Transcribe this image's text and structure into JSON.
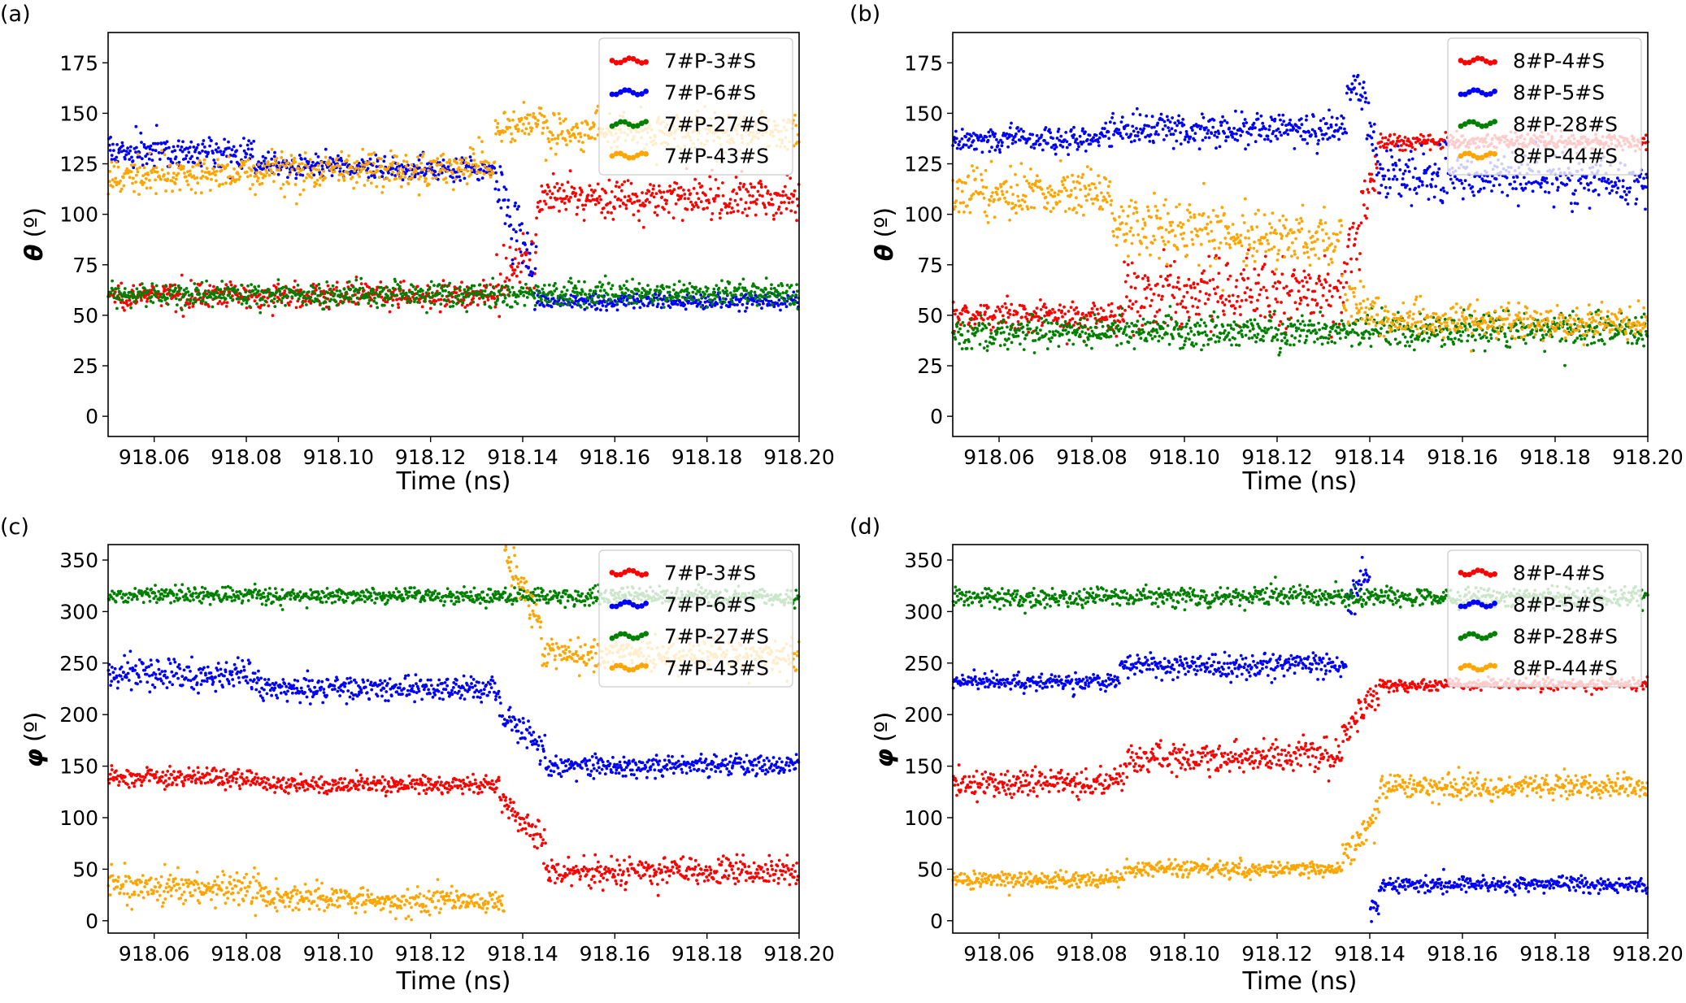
{
  "chart_data": [
    {
      "type": "scatter",
      "panel_label": "(a)",
      "xlabel": "Time (ns)",
      "ylabel_symbol": "θ",
      "ylabel_unit": "(º)",
      "xlim": [
        918.05,
        918.2
      ],
      "ylim": [
        -10,
        190
      ],
      "xticks": [
        918.06,
        918.08,
        918.1,
        918.12,
        918.14,
        918.16,
        918.18,
        918.2
      ],
      "xtick_labels": [
        "918.06",
        "918.08",
        "918.10",
        "918.12",
        "918.14",
        "918.16",
        "918.18",
        "918.20"
      ],
      "yticks": [
        0,
        25,
        50,
        75,
        100,
        125,
        150,
        175
      ],
      "ytick_labels": [
        "0",
        "25",
        "50",
        "75",
        "100",
        "125",
        "150",
        "175"
      ],
      "legend_position": "top-right",
      "series": [
        {
          "name": "7#P-3#S",
          "color": "#ff0000",
          "segments": [
            {
              "t0": 918.05,
              "t1": 918.134,
              "v0": 60,
              "v1": 60,
              "noise": 3
            },
            {
              "t0": 918.134,
              "t1": 918.143,
              "v0": 60,
              "v1": 80,
              "noise": 8
            },
            {
              "t0": 918.143,
              "t1": 918.2,
              "v0": 108,
              "v1": 108,
              "noise": 5
            }
          ]
        },
        {
          "name": "7#P-6#S",
          "color": "#0000ff",
          "segments": [
            {
              "t0": 918.05,
              "t1": 918.082,
              "v0": 132,
              "v1": 130,
              "noise": 4
            },
            {
              "t0": 918.082,
              "t1": 918.134,
              "v0": 124,
              "v1": 122,
              "noise": 3
            },
            {
              "t0": 918.134,
              "t1": 918.143,
              "v0": 118,
              "v1": 70,
              "noise": 8
            },
            {
              "t0": 918.143,
              "t1": 918.2,
              "v0": 57,
              "v1": 57,
              "noise": 2
            }
          ]
        },
        {
          "name": "7#P-27#S",
          "color": "#008000",
          "segments": [
            {
              "t0": 918.05,
              "t1": 918.2,
              "v0": 60,
              "v1": 61,
              "noise": 3
            }
          ]
        },
        {
          "name": "7#P-43#S",
          "color": "#ffa500",
          "segments": [
            {
              "t0": 918.05,
              "t1": 918.134,
              "v0": 118,
              "v1": 124,
              "noise": 5
            },
            {
              "t0": 918.134,
              "t1": 918.145,
              "v0": 140,
              "v1": 148,
              "noise": 4
            },
            {
              "t0": 918.145,
              "t1": 918.2,
              "v0": 141,
              "v1": 141,
              "noise": 5
            }
          ]
        }
      ]
    },
    {
      "type": "scatter",
      "panel_label": "(b)",
      "xlabel": "Time (ns)",
      "ylabel_symbol": "θ",
      "ylabel_unit": "(º)",
      "xlim": [
        918.05,
        918.2
      ],
      "ylim": [
        -10,
        190
      ],
      "xticks": [
        918.06,
        918.08,
        918.1,
        918.12,
        918.14,
        918.16,
        918.18,
        918.2
      ],
      "xtick_labels": [
        "918.06",
        "918.08",
        "918.10",
        "918.12",
        "918.14",
        "918.16",
        "918.18",
        "918.20"
      ],
      "yticks": [
        0,
        25,
        50,
        75,
        100,
        125,
        150,
        175
      ],
      "ytick_labels": [
        "0",
        "25",
        "50",
        "75",
        "100",
        "125",
        "150",
        "175"
      ],
      "legend_position": "top-right",
      "series": [
        {
          "name": "8#P-4#S",
          "color": "#ff0000",
          "segments": [
            {
              "t0": 918.05,
              "t1": 918.087,
              "v0": 50,
              "v1": 50,
              "noise": 4
            },
            {
              "t0": 918.087,
              "t1": 918.135,
              "v0": 60,
              "v1": 62,
              "noise": 9
            },
            {
              "t0": 918.135,
              "t1": 918.142,
              "v0": 75,
              "v1": 130,
              "noise": 8
            },
            {
              "t0": 918.142,
              "t1": 918.2,
              "v0": 136,
              "v1": 136,
              "noise": 2
            }
          ]
        },
        {
          "name": "8#P-5#S",
          "color": "#0000ff",
          "segments": [
            {
              "t0": 918.05,
              "t1": 918.082,
              "v0": 137,
              "v1": 137,
              "noise": 3
            },
            {
              "t0": 918.082,
              "t1": 918.135,
              "v0": 142,
              "v1": 142,
              "noise": 4
            },
            {
              "t0": 918.135,
              "t1": 918.139,
              "v0": 162,
              "v1": 160,
              "noise": 5
            },
            {
              "t0": 918.139,
              "t1": 918.142,
              "v0": 150,
              "v1": 125,
              "noise": 6
            },
            {
              "t0": 918.142,
              "t1": 918.2,
              "v0": 120,
              "v1": 116,
              "noise": 6
            }
          ]
        },
        {
          "name": "8#P-28#S",
          "color": "#008000",
          "segments": [
            {
              "t0": 918.05,
              "t1": 918.2,
              "v0": 42,
              "v1": 43,
              "noise": 4
            }
          ]
        },
        {
          "name": "8#P-44#S",
          "color": "#ffa500",
          "segments": [
            {
              "t0": 918.05,
              "t1": 918.084,
              "v0": 112,
              "v1": 110,
              "noise": 6
            },
            {
              "t0": 918.084,
              "t1": 918.134,
              "v0": 92,
              "v1": 88,
              "noise": 7
            },
            {
              "t0": 918.134,
              "t1": 918.142,
              "v0": 60,
              "v1": 48,
              "noise": 6
            },
            {
              "t0": 918.142,
              "t1": 918.2,
              "v0": 47,
              "v1": 47,
              "noise": 4
            }
          ]
        }
      ]
    },
    {
      "type": "scatter",
      "panel_label": "(c)",
      "xlabel": "Time (ns)",
      "ylabel_symbol": "φ",
      "ylabel_unit": "(º)",
      "xlim": [
        918.05,
        918.2
      ],
      "ylim": [
        -12,
        365
      ],
      "xticks": [
        918.06,
        918.08,
        918.1,
        918.12,
        918.14,
        918.16,
        918.18,
        918.2
      ],
      "xtick_labels": [
        "918.06",
        "918.08",
        "918.10",
        "918.12",
        "918.14",
        "918.16",
        "918.18",
        "918.20"
      ],
      "yticks": [
        0,
        50,
        100,
        150,
        200,
        250,
        300,
        350
      ],
      "ytick_labels": [
        "0",
        "50",
        "100",
        "150",
        "200",
        "250",
        "300",
        "350"
      ],
      "legend_position": "top-right",
      "series": [
        {
          "name": "7#P-3#S",
          "color": "#ff0000",
          "segments": [
            {
              "t0": 918.05,
              "t1": 918.083,
              "v0": 140,
              "v1": 138,
              "noise": 5
            },
            {
              "t0": 918.083,
              "t1": 918.135,
              "v0": 132,
              "v1": 132,
              "noise": 4
            },
            {
              "t0": 918.135,
              "t1": 918.145,
              "v0": 120,
              "v1": 70,
              "noise": 8
            },
            {
              "t0": 918.145,
              "t1": 918.2,
              "v0": 48,
              "v1": 48,
              "noise": 7
            }
          ]
        },
        {
          "name": "7#P-6#S",
          "color": "#0000ff",
          "segments": [
            {
              "t0": 918.05,
              "t1": 918.083,
              "v0": 240,
              "v1": 235,
              "noise": 8
            },
            {
              "t0": 918.083,
              "t1": 918.135,
              "v0": 226,
              "v1": 224,
              "noise": 6
            },
            {
              "t0": 918.135,
              "t1": 918.145,
              "v0": 205,
              "v1": 165,
              "noise": 8
            },
            {
              "t0": 918.145,
              "t1": 918.2,
              "v0": 150,
              "v1": 150,
              "noise": 5
            }
          ]
        },
        {
          "name": "7#P-27#S",
          "color": "#008000",
          "segments": [
            {
              "t0": 918.05,
              "t1": 918.2,
              "v0": 316,
              "v1": 314,
              "noise": 4
            }
          ]
        },
        {
          "name": "7#P-43#S",
          "color": "#ffa500",
          "segments": [
            {
              "t0": 918.05,
              "t1": 918.083,
              "v0": 35,
              "v1": 30,
              "noise": 8
            },
            {
              "t0": 918.083,
              "t1": 918.136,
              "v0": 22,
              "v1": 18,
              "noise": 6
            },
            {
              "t0": 918.136,
              "t1": 918.144,
              "v0": 355,
              "v1": 290,
              "noise": 10
            },
            {
              "t0": 918.144,
              "t1": 918.2,
              "v0": 258,
              "v1": 258,
              "noise": 8
            }
          ]
        }
      ]
    },
    {
      "type": "scatter",
      "panel_label": "(d)",
      "xlabel": "Time (ns)",
      "ylabel_symbol": "φ",
      "ylabel_unit": "(º)",
      "xlim": [
        918.05,
        918.2
      ],
      "ylim": [
        -12,
        365
      ],
      "xticks": [
        918.06,
        918.08,
        918.1,
        918.12,
        918.14,
        918.16,
        918.18,
        918.2
      ],
      "xtick_labels": [
        "918.06",
        "918.08",
        "918.10",
        "918.12",
        "918.14",
        "918.16",
        "918.18",
        "918.20"
      ],
      "yticks": [
        0,
        50,
        100,
        150,
        200,
        250,
        300,
        350
      ],
      "ytick_labels": [
        "0",
        "50",
        "100",
        "150",
        "200",
        "250",
        "300",
        "350"
      ],
      "legend_position": "top-right",
      "series": [
        {
          "name": "8#P-4#S",
          "color": "#ff0000",
          "segments": [
            {
              "t0": 918.05,
              "t1": 918.087,
              "v0": 133,
              "v1": 135,
              "noise": 7
            },
            {
              "t0": 918.087,
              "t1": 918.134,
              "v0": 158,
              "v1": 160,
              "noise": 8
            },
            {
              "t0": 918.134,
              "t1": 918.142,
              "v0": 180,
              "v1": 220,
              "noise": 8
            },
            {
              "t0": 918.142,
              "t1": 918.2,
              "v0": 229,
              "v1": 229,
              "noise": 3
            }
          ]
        },
        {
          "name": "8#P-5#S",
          "color": "#0000ff",
          "segments": [
            {
              "t0": 918.05,
              "t1": 918.086,
              "v0": 232,
              "v1": 232,
              "noise": 4
            },
            {
              "t0": 918.086,
              "t1": 918.135,
              "v0": 248,
              "v1": 248,
              "noise": 6
            },
            {
              "t0": 918.135,
              "t1": 918.14,
              "v0": 300,
              "v1": 350,
              "noise": 10
            },
            {
              "t0": 918.14,
              "t1": 918.142,
              "v0": 10,
              "v1": 15,
              "noise": 5
            },
            {
              "t0": 918.142,
              "t1": 918.2,
              "v0": 35,
              "v1": 35,
              "noise": 4
            }
          ]
        },
        {
          "name": "8#P-28#S",
          "color": "#008000",
          "segments": [
            {
              "t0": 918.05,
              "t1": 918.2,
              "v0": 314,
              "v1": 314,
              "noise": 5
            }
          ]
        },
        {
          "name": "8#P-44#S",
          "color": "#ffa500",
          "segments": [
            {
              "t0": 918.05,
              "t1": 918.087,
              "v0": 40,
              "v1": 40,
              "noise": 4
            },
            {
              "t0": 918.087,
              "t1": 918.134,
              "v0": 50,
              "v1": 50,
              "noise": 4
            },
            {
              "t0": 918.134,
              "t1": 918.142,
              "v0": 60,
              "v1": 105,
              "noise": 8
            },
            {
              "t0": 918.142,
              "t1": 918.2,
              "v0": 130,
              "v1": 130,
              "noise": 6
            }
          ]
        }
      ]
    }
  ]
}
